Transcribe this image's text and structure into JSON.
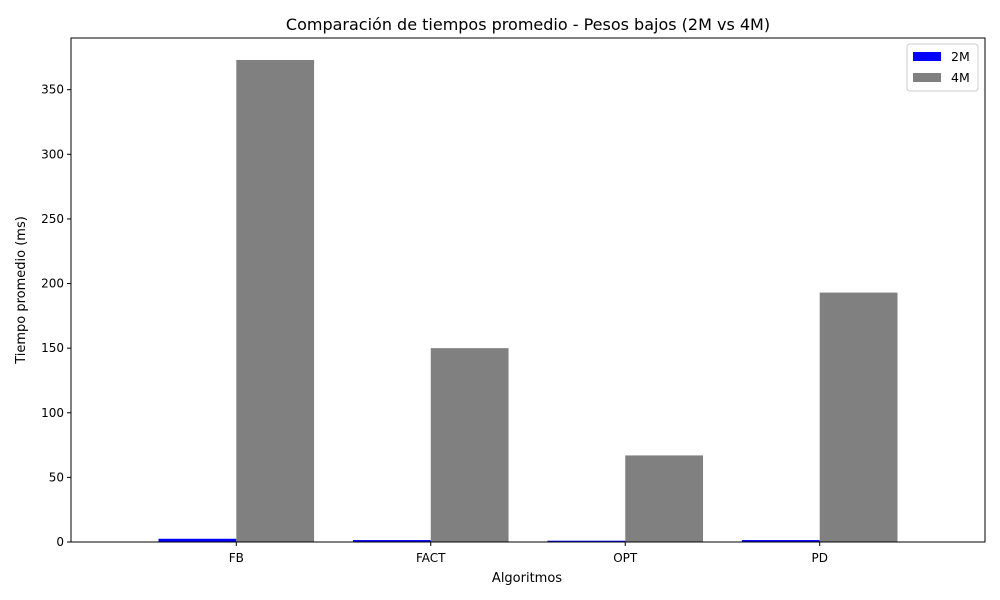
{
  "chart_data": {
    "type": "bar",
    "title": "Comparación de tiempos promedio - Pesos bajos (2M vs 4M)",
    "xlabel": "Algoritmos",
    "ylabel": "Tiempo promedio (ms)",
    "categories": [
      "FB",
      "FACT",
      "OPT",
      "PD"
    ],
    "series": [
      {
        "name": "2M",
        "color": "#0000ff",
        "values": [
          2.5,
          1.5,
          1.0,
          1.5
        ]
      },
      {
        "name": "4M",
        "color": "#808080",
        "values": [
          373,
          150,
          67,
          193
        ]
      }
    ],
    "ylim": [
      0,
      390
    ],
    "yticks": [
      0,
      50,
      100,
      150,
      200,
      250,
      300,
      350
    ],
    "grid": false,
    "legend_position": "top-right"
  }
}
